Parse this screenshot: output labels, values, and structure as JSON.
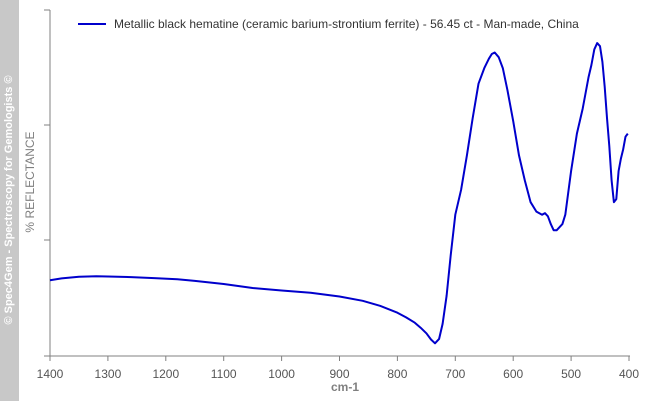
{
  "watermark": "© Spec4Gem - Spectroscopy for Gemologists ©",
  "chart_data": {
    "type": "line",
    "xlabel": "cm-1",
    "ylabel": "% REFLECTANCE",
    "xlim": [
      1400,
      400
    ],
    "x_reversed": true,
    "ylim": [
      0,
      100
    ],
    "y_ticks_labeled": false,
    "x_ticks": [
      1400,
      1300,
      1200,
      1100,
      1000,
      900,
      800,
      700,
      600,
      500,
      400
    ],
    "x_tick_labels": [
      "1400",
      "1300",
      "1200",
      "1100",
      "1000",
      "900",
      "800",
      "700",
      "600",
      "500",
      "400"
    ],
    "grid": false,
    "legend_position": "top",
    "series": [
      {
        "name": "Metallic black hematine (ceramic barium-strontium ferrite) - 56.45 ct - Man-made, China",
        "color": "#0000cc",
        "x": [
          1400,
          1380,
          1350,
          1320,
          1300,
          1260,
          1220,
          1180,
          1150,
          1100,
          1050,
          1000,
          950,
          900,
          860,
          830,
          800,
          785,
          770,
          760,
          750,
          742,
          735,
          728,
          722,
          715,
          708,
          700,
          690,
          680,
          670,
          660,
          650,
          642,
          637,
          632,
          625,
          618,
          610,
          600,
          590,
          580,
          570,
          560,
          550,
          545,
          540,
          535,
          530,
          525,
          520,
          515,
          510,
          505,
          500,
          495,
          490,
          485,
          480,
          475,
          470,
          465,
          460,
          455,
          450,
          446,
          442,
          438,
          434,
          430,
          426,
          422,
          418,
          414,
          410,
          406,
          402
        ],
        "y": [
          23.0,
          23.6,
          24.1,
          24.3,
          24.2,
          24.0,
          23.7,
          23.3,
          22.8,
          21.8,
          20.5,
          19.7,
          19.0,
          17.8,
          16.4,
          14.8,
          12.6,
          11.1,
          9.4,
          7.8,
          6.0,
          4.0,
          2.8,
          4.2,
          9.0,
          18.0,
          31.0,
          44.0,
          52.0,
          63.0,
          75.0,
          86.0,
          91.0,
          94.0,
          95.5,
          96.0,
          94.5,
          91.0,
          84.0,
          74.0,
          63.0,
          55.0,
          48.0,
          45.0,
          44.0,
          44.5,
          43.5,
          41.0,
          39.0,
          39.0,
          40.0,
          41.0,
          44.0,
          51.0,
          58.0,
          64.0,
          70.0,
          74.0,
          78.0,
          83.0,
          88.0,
          92.0,
          97.0,
          99.0,
          98.0,
          93.0,
          85.0,
          75.0,
          66.0,
          55.0,
          48.0,
          49.0,
          58.0,
          62.0,
          65.0,
          69.0,
          70.0
        ]
      }
    ]
  }
}
